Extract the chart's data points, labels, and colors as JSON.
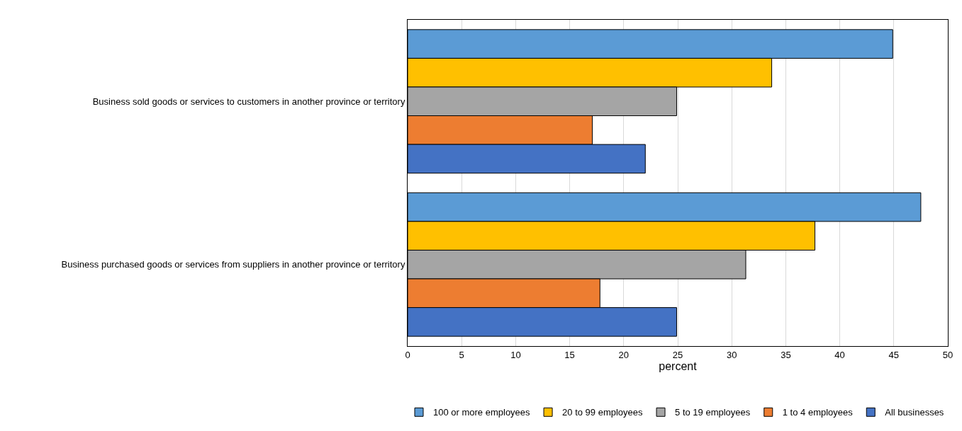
{
  "chart_data": {
    "type": "bar",
    "orientation": "horizontal",
    "xlabel": "percent",
    "categories": [
      "Business sold goods or services to customers in another province or territory",
      "Business purchased goods or services from suppliers in another province or territory"
    ],
    "series": [
      {
        "name": "100 or more employees",
        "color": "#5b9bd5",
        "values": [
          44.9,
          47.5
        ]
      },
      {
        "name": "20 to 99 employees",
        "color": "#ffc000",
        "values": [
          33.7,
          37.7
        ]
      },
      {
        "name": "5 to 19 employees",
        "color": "#a5a5a5",
        "values": [
          24.9,
          31.3
        ]
      },
      {
        "name": "1 to 4 employees",
        "color": "#ed7d31",
        "values": [
          17.1,
          17.8
        ]
      },
      {
        "name": "All businesses",
        "color": "#4472c4",
        "values": [
          22.0,
          24.9
        ]
      }
    ],
    "xlim": [
      0,
      50
    ],
    "xticks": [
      0,
      5,
      10,
      15,
      20,
      25,
      30,
      35,
      40,
      45,
      50
    ],
    "grid": "x",
    "legend": "bottom"
  }
}
